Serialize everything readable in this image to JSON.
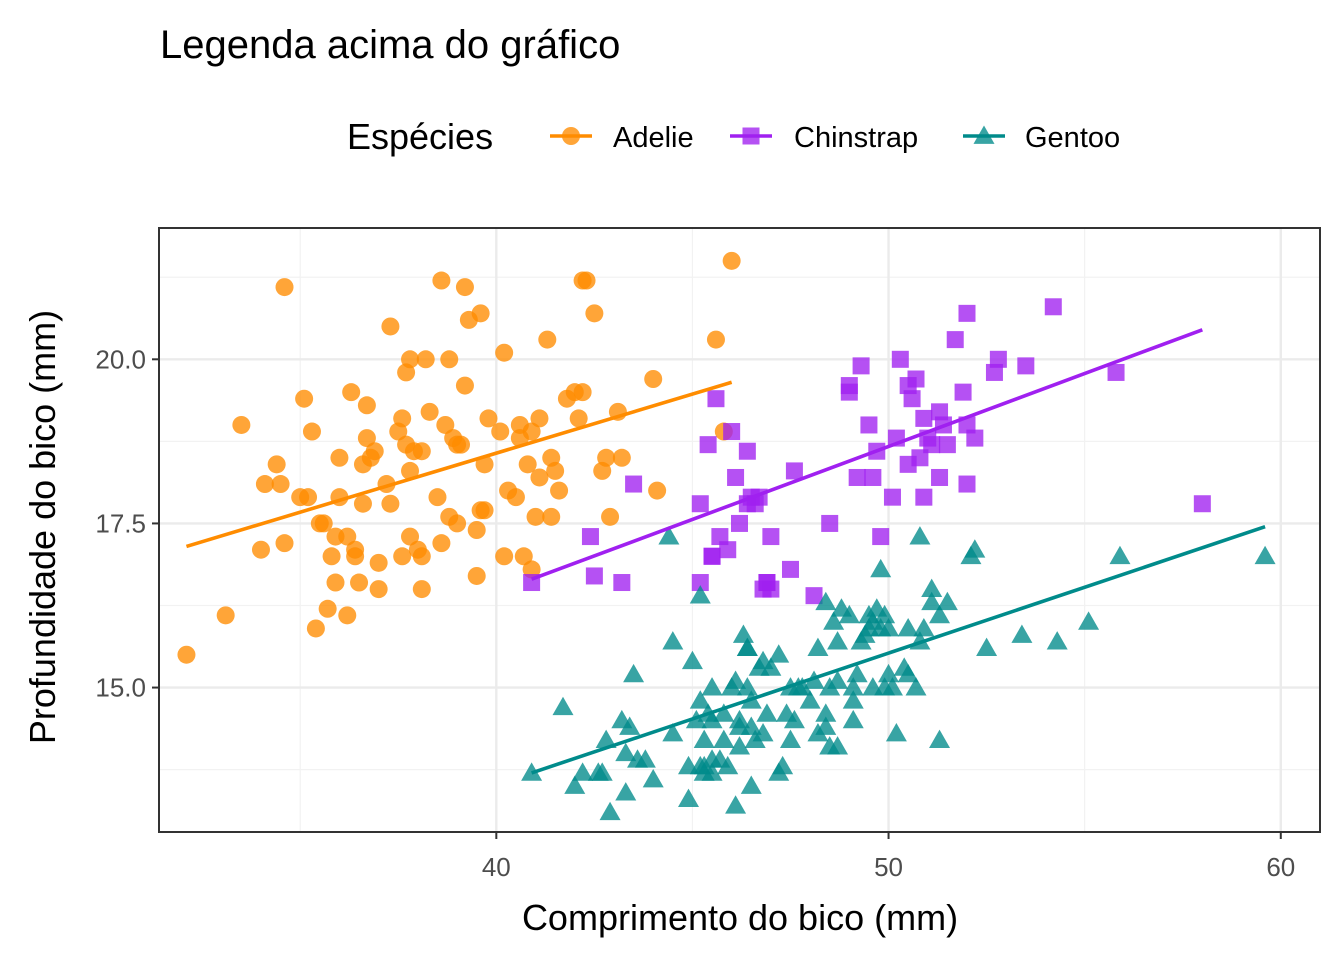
{
  "chart_data": {
    "type": "scatter",
    "title": "Legenda acima do gráfico",
    "xlabel": "Comprimento do bico (mm)",
    "ylabel": "Profundidade do bico (mm)",
    "xlim": [
      31.4,
      61.0
    ],
    "ylim": [
      12.8,
      22.0
    ],
    "x_major_ticks": [
      40,
      50,
      60
    ],
    "x_tick_labels": [
      "40",
      "50",
      "60"
    ],
    "x_minor_ticks": [
      35,
      45,
      55
    ],
    "y_major_ticks": [
      15.0,
      17.5,
      20.0
    ],
    "y_tick_labels": [
      "15.0",
      "17.5",
      "20.0"
    ],
    "y_minor_ticks": [
      13.75,
      16.25,
      18.75,
      21.25
    ],
    "grid": true,
    "legend": {
      "title": "Espécies",
      "placement": "top",
      "items": [
        {
          "label": "Adelie",
          "shape": "circle",
          "color": "#FF8C00"
        },
        {
          "label": "Chinstrap",
          "shape": "square",
          "color": "#A020F0"
        },
        {
          "label": "Gentoo",
          "shape": "triangle",
          "color": "#008B8B"
        }
      ]
    },
    "series": [
      {
        "name": "Adelie",
        "shape": "circle",
        "color": "#FF8C00",
        "trend": {
          "x": [
            32.1,
            46.0
          ],
          "y": [
            17.15,
            19.65
          ]
        },
        "points": [
          [
            32.1,
            15.5
          ],
          [
            33.1,
            16.1
          ],
          [
            33.5,
            19.0
          ],
          [
            34.1,
            18.1
          ],
          [
            34.4,
            18.4
          ],
          [
            34.0,
            17.1
          ],
          [
            34.5,
            18.1
          ],
          [
            34.6,
            21.1
          ],
          [
            34.6,
            17.2
          ],
          [
            35.0,
            17.9
          ],
          [
            35.1,
            19.4
          ],
          [
            35.3,
            18.9
          ],
          [
            35.5,
            17.5
          ],
          [
            35.6,
            17.5
          ],
          [
            35.7,
            16.2
          ],
          [
            35.4,
            15.9
          ],
          [
            35.9,
            16.6
          ],
          [
            35.8,
            17.0
          ],
          [
            35.9,
            17.3
          ],
          [
            36.0,
            18.5
          ],
          [
            36.0,
            17.9
          ],
          [
            36.2,
            17.3
          ],
          [
            36.2,
            16.1
          ],
          [
            36.3,
            19.5
          ],
          [
            36.4,
            17.1
          ],
          [
            36.4,
            17.0
          ],
          [
            36.5,
            16.6
          ],
          [
            36.6,
            17.8
          ],
          [
            36.7,
            18.8
          ],
          [
            36.7,
            19.3
          ],
          [
            36.8,
            18.5
          ],
          [
            36.9,
            18.6
          ],
          [
            37.0,
            16.9
          ],
          [
            37.0,
            16.5
          ],
          [
            37.2,
            18.1
          ],
          [
            37.3,
            20.5
          ],
          [
            37.3,
            17.8
          ],
          [
            37.6,
            19.1
          ],
          [
            37.6,
            17.0
          ],
          [
            37.7,
            19.8
          ],
          [
            37.7,
            18.7
          ],
          [
            37.8,
            20.0
          ],
          [
            37.8,
            18.3
          ],
          [
            37.8,
            17.3
          ],
          [
            37.9,
            18.6
          ],
          [
            38.1,
            18.6
          ],
          [
            38.1,
            17.0
          ],
          [
            38.1,
            16.5
          ],
          [
            38.2,
            20.0
          ],
          [
            38.3,
            19.2
          ],
          [
            38.5,
            17.9
          ],
          [
            38.6,
            21.2
          ],
          [
            38.6,
            17.2
          ],
          [
            38.7,
            19.0
          ],
          [
            38.8,
            20.0
          ],
          [
            38.8,
            17.6
          ],
          [
            38.9,
            18.8
          ],
          [
            39.0,
            17.5
          ],
          [
            39.1,
            18.7
          ],
          [
            39.2,
            21.1
          ],
          [
            39.2,
            19.6
          ],
          [
            39.3,
            20.6
          ],
          [
            39.5,
            17.4
          ],
          [
            39.5,
            16.7
          ],
          [
            39.6,
            17.7
          ],
          [
            39.6,
            20.7
          ],
          [
            39.7,
            17.7
          ],
          [
            39.8,
            19.1
          ],
          [
            40.1,
            18.9
          ],
          [
            40.2,
            20.1
          ],
          [
            40.2,
            17.0
          ],
          [
            40.3,
            18.0
          ],
          [
            40.5,
            17.9
          ],
          [
            40.6,
            18.8
          ],
          [
            40.6,
            19.0
          ],
          [
            40.7,
            17.0
          ],
          [
            40.8,
            18.4
          ],
          [
            40.9,
            16.8
          ],
          [
            41.0,
            17.6
          ],
          [
            41.1,
            18.2
          ],
          [
            41.1,
            19.1
          ],
          [
            41.3,
            20.3
          ],
          [
            41.4,
            18.5
          ],
          [
            41.5,
            18.3
          ],
          [
            41.6,
            18.0
          ],
          [
            41.8,
            19.4
          ],
          [
            42.0,
            19.5
          ],
          [
            42.1,
            19.1
          ],
          [
            42.2,
            19.5
          ],
          [
            42.2,
            21.2
          ],
          [
            42.3,
            21.2
          ],
          [
            42.5,
            20.7
          ],
          [
            42.7,
            18.3
          ],
          [
            42.8,
            18.5
          ],
          [
            42.9,
            17.6
          ],
          [
            43.1,
            19.2
          ],
          [
            43.2,
            18.5
          ],
          [
            44.0,
            19.7
          ],
          [
            44.1,
            18.0
          ],
          [
            45.6,
            20.3
          ],
          [
            45.8,
            18.9
          ],
          [
            46.0,
            21.5
          ],
          [
            36.6,
            18.4
          ],
          [
            37.5,
            18.9
          ],
          [
            38.0,
            17.1
          ],
          [
            39.0,
            18.7
          ],
          [
            39.7,
            18.4
          ],
          [
            41.4,
            17.6
          ],
          [
            40.9,
            18.9
          ],
          [
            35.2,
            17.9
          ]
        ]
      },
      {
        "name": "Chinstrap",
        "shape": "square",
        "color": "#A020F0",
        "trend": {
          "x": [
            40.9,
            58.0
          ],
          "y": [
            16.65,
            20.45
          ]
        },
        "points": [
          [
            40.9,
            16.6
          ],
          [
            42.4,
            17.3
          ],
          [
            42.5,
            16.7
          ],
          [
            43.2,
            16.6
          ],
          [
            43.5,
            18.1
          ],
          [
            45.2,
            16.6
          ],
          [
            45.2,
            17.8
          ],
          [
            45.4,
            18.7
          ],
          [
            45.5,
            17.0
          ],
          [
            45.6,
            19.4
          ],
          [
            45.7,
            17.3
          ],
          [
            45.9,
            17.1
          ],
          [
            46.0,
            18.9
          ],
          [
            46.1,
            18.2
          ],
          [
            46.2,
            17.5
          ],
          [
            46.4,
            17.8
          ],
          [
            46.4,
            18.6
          ],
          [
            46.5,
            17.9
          ],
          [
            46.6,
            17.8
          ],
          [
            46.7,
            17.9
          ],
          [
            46.8,
            16.5
          ],
          [
            46.9,
            16.6
          ],
          [
            47.0,
            17.3
          ],
          [
            47.5,
            16.8
          ],
          [
            47.6,
            18.3
          ],
          [
            48.1,
            16.4
          ],
          [
            48.5,
            17.5
          ],
          [
            49.0,
            19.5
          ],
          [
            49.2,
            18.2
          ],
          [
            49.3,
            19.9
          ],
          [
            49.5,
            19.0
          ],
          [
            49.6,
            18.2
          ],
          [
            49.7,
            18.6
          ],
          [
            49.8,
            17.3
          ],
          [
            50.1,
            17.9
          ],
          [
            50.2,
            18.8
          ],
          [
            50.3,
            20.0
          ],
          [
            50.5,
            18.4
          ],
          [
            50.6,
            19.4
          ],
          [
            50.7,
            19.7
          ],
          [
            50.8,
            18.5
          ],
          [
            50.9,
            19.1
          ],
          [
            51.0,
            18.8
          ],
          [
            51.3,
            18.2
          ],
          [
            51.4,
            19.0
          ],
          [
            51.5,
            18.7
          ],
          [
            51.7,
            20.3
          ],
          [
            51.9,
            19.5
          ],
          [
            52.0,
            20.7
          ],
          [
            52.0,
            18.1
          ],
          [
            52.2,
            18.8
          ],
          [
            52.7,
            19.8
          ],
          [
            52.8,
            20.0
          ],
          [
            53.5,
            19.9
          ],
          [
            54.2,
            20.8
          ],
          [
            55.8,
            19.8
          ],
          [
            58.0,
            17.8
          ],
          [
            49.0,
            19.6
          ],
          [
            50.5,
            19.6
          ],
          [
            51.3,
            19.2
          ],
          [
            47.0,
            16.5
          ],
          [
            46.9,
            16.6
          ],
          [
            45.5,
            17.0
          ],
          [
            52.0,
            19.0
          ],
          [
            50.9,
            17.9
          ],
          [
            51.1,
            18.7
          ]
        ]
      },
      {
        "name": "Gentoo",
        "shape": "triangle",
        "color": "#008B8B",
        "trend": {
          "x": [
            40.9,
            59.6
          ],
          "y": [
            13.7,
            17.45
          ]
        },
        "points": [
          [
            40.9,
            13.7
          ],
          [
            41.7,
            14.7
          ],
          [
            42.0,
            13.5
          ],
          [
            42.2,
            13.7
          ],
          [
            42.6,
            13.7
          ],
          [
            42.7,
            13.7
          ],
          [
            42.8,
            14.2
          ],
          [
            42.9,
            13.1
          ],
          [
            43.2,
            14.5
          ],
          [
            43.3,
            14.0
          ],
          [
            43.3,
            13.4
          ],
          [
            43.4,
            14.4
          ],
          [
            43.5,
            15.2
          ],
          [
            43.6,
            13.9
          ],
          [
            43.8,
            13.9
          ],
          [
            44.4,
            17.3
          ],
          [
            44.5,
            14.3
          ],
          [
            44.5,
            15.7
          ],
          [
            44.9,
            13.3
          ],
          [
            44.9,
            13.8
          ],
          [
            45.0,
            15.4
          ],
          [
            45.1,
            14.5
          ],
          [
            45.2,
            13.8
          ],
          [
            45.2,
            14.8
          ],
          [
            45.2,
            16.4
          ],
          [
            45.3,
            13.7
          ],
          [
            45.3,
            13.8
          ],
          [
            45.4,
            14.6
          ],
          [
            45.5,
            13.7
          ],
          [
            45.5,
            13.9
          ],
          [
            45.5,
            14.5
          ],
          [
            45.5,
            15.0
          ],
          [
            45.7,
            13.9
          ],
          [
            45.8,
            14.2
          ],
          [
            45.8,
            14.6
          ],
          [
            45.9,
            13.8
          ],
          [
            46.1,
            13.2
          ],
          [
            46.1,
            15.1
          ],
          [
            46.2,
            14.1
          ],
          [
            46.2,
            14.4
          ],
          [
            46.2,
            14.5
          ],
          [
            46.3,
            15.8
          ],
          [
            46.4,
            15.0
          ],
          [
            46.4,
            15.6
          ],
          [
            46.5,
            13.5
          ],
          [
            46.5,
            14.4
          ],
          [
            46.5,
            14.8
          ],
          [
            46.6,
            14.2
          ],
          [
            46.7,
            15.3
          ],
          [
            46.8,
            14.3
          ],
          [
            46.8,
            15.4
          ],
          [
            46.9,
            14.6
          ],
          [
            47.2,
            13.7
          ],
          [
            47.2,
            15.5
          ],
          [
            47.3,
            13.8
          ],
          [
            47.4,
            14.6
          ],
          [
            47.5,
            14.2
          ],
          [
            47.5,
            15.0
          ],
          [
            47.6,
            14.5
          ],
          [
            47.7,
            15.0
          ],
          [
            47.8,
            15.0
          ],
          [
            48.1,
            15.1
          ],
          [
            48.2,
            14.3
          ],
          [
            48.2,
            15.6
          ],
          [
            48.4,
            14.4
          ],
          [
            48.4,
            14.6
          ],
          [
            48.4,
            16.3
          ],
          [
            48.5,
            14.1
          ],
          [
            48.5,
            15.0
          ],
          [
            48.6,
            16.0
          ],
          [
            48.7,
            14.1
          ],
          [
            48.7,
            15.1
          ],
          [
            48.7,
            15.7
          ],
          [
            48.8,
            16.2
          ],
          [
            49.0,
            16.1
          ],
          [
            49.1,
            14.5
          ],
          [
            49.1,
            14.8
          ],
          [
            49.1,
            15.0
          ],
          [
            49.2,
            15.2
          ],
          [
            49.3,
            15.7
          ],
          [
            49.4,
            15.8
          ],
          [
            49.5,
            15.9
          ],
          [
            49.5,
            16.1
          ],
          [
            49.6,
            15.0
          ],
          [
            49.6,
            16.0
          ],
          [
            49.7,
            16.2
          ],
          [
            49.8,
            15.9
          ],
          [
            49.8,
            16.8
          ],
          [
            49.9,
            16.1
          ],
          [
            50.0,
            15.2
          ],
          [
            50.0,
            15.9
          ],
          [
            50.1,
            15.0
          ],
          [
            50.2,
            14.3
          ],
          [
            50.4,
            15.3
          ],
          [
            50.5,
            15.2
          ],
          [
            50.5,
            15.9
          ],
          [
            50.7,
            15.0
          ],
          [
            50.8,
            15.7
          ],
          [
            50.8,
            17.3
          ],
          [
            51.1,
            16.3
          ],
          [
            51.1,
            16.5
          ],
          [
            51.3,
            14.2
          ],
          [
            51.3,
            16.1
          ],
          [
            51.5,
            16.3
          ],
          [
            52.1,
            17.0
          ],
          [
            52.2,
            17.1
          ],
          [
            52.5,
            15.6
          ],
          [
            53.4,
            15.8
          ],
          [
            54.3,
            15.7
          ],
          [
            55.1,
            16.0
          ],
          [
            55.9,
            17.0
          ],
          [
            59.6,
            17.0
          ],
          [
            44.0,
            13.6
          ],
          [
            46.0,
            15.0
          ],
          [
            47.0,
            15.3
          ],
          [
            48.0,
            14.8
          ],
          [
            46.4,
            15.6
          ],
          [
            45.3,
            14.2
          ],
          [
            49.9,
            15.0
          ],
          [
            50.9,
            15.9
          ]
        ]
      }
    ]
  }
}
